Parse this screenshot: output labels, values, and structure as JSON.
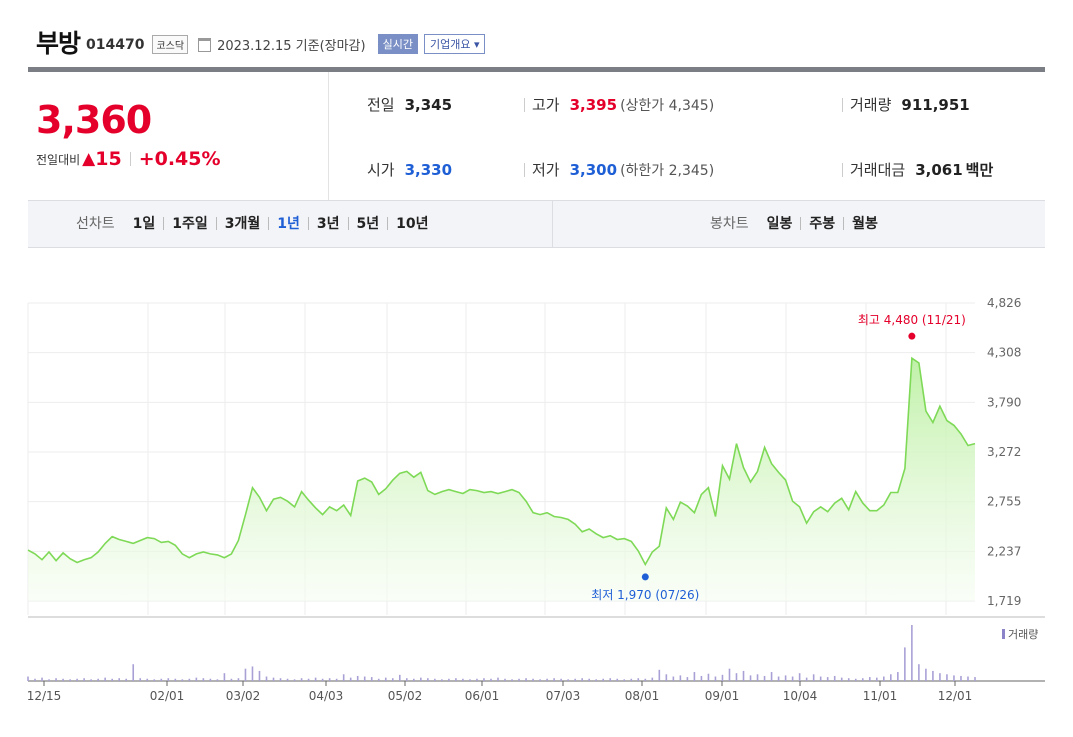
{
  "header": {
    "name": "부방",
    "code": "014470",
    "market": "코스닥",
    "date": "2023.12.15 기준(장마감)",
    "realtime": "실시간",
    "overview": "기업개요 ▾"
  },
  "quote": {
    "price": "3,360",
    "change_label": "전일대비",
    "change_arrow": "▲",
    "change": "15",
    "change_pct": "+0.45%"
  },
  "stats": {
    "prev_label": "전일",
    "prev": "3,345",
    "high_label": "고가",
    "high": "3,395",
    "upper_limit": "(상한가 4,345)",
    "volume_label": "거래량",
    "volume": "911,951",
    "open_label": "시가",
    "open": "3,330",
    "low_label": "저가",
    "low": "3,300",
    "lower_limit": "(하한가 2,345)",
    "amount_label": "거래대금",
    "amount": "3,061",
    "amount_unit": "백만"
  },
  "line_chart_tabs": {
    "label": "선차트",
    "items": [
      "1일",
      "1주일",
      "3개월",
      "1년",
      "3년",
      "5년",
      "10년"
    ],
    "active": "1년"
  },
  "candle_chart_tabs": {
    "label": "봉차트",
    "items": [
      "일봉",
      "주봉",
      "월봉"
    ]
  },
  "colors": {
    "up": "#e4002b",
    "down": "#1f5fd6",
    "line": "#7ed957",
    "fill_top": "#bdf0a4",
    "volume_bar": "#a9a1d6"
  },
  "chart_data": {
    "type": "area",
    "y_ticks": [
      "4,826",
      "4,308",
      "3,790",
      "3,272",
      "2,755",
      "2,237",
      "1,719"
    ],
    "ylim": [
      1719,
      4826
    ],
    "x_ticks": [
      "12/15",
      "02/01",
      "03/02",
      "04/03",
      "05/02",
      "06/01",
      "07/03",
      "08/01",
      "09/01",
      "10/04",
      "11/01",
      "12/01"
    ],
    "high_annotation": "최고 4,480 (11/21)",
    "low_annotation": "최저 1,970 (07/26)",
    "high": 4480,
    "low": 1970,
    "volume_legend": "거래량",
    "grid": true,
    "series": [
      {
        "values": [
          2250,
          2210,
          2150,
          2230,
          2140,
          2220,
          2160,
          2120,
          2150,
          2170,
          2230,
          2320,
          2390,
          2360,
          2340,
          2320,
          2350,
          2380,
          2370,
          2330,
          2340,
          2300,
          2210,
          2170,
          2210,
          2230,
          2210,
          2200,
          2170,
          2210,
          2350,
          2620,
          2900,
          2800,
          2660,
          2780,
          2800,
          2760,
          2700,
          2860,
          2770,
          2690,
          2620,
          2700,
          2660,
          2720,
          2610,
          2970,
          3000,
          2960,
          2830,
          2890,
          2980,
          3050,
          3070,
          3010,
          3060,
          2870,
          2830,
          2860,
          2880,
          2860,
          2840,
          2880,
          2870,
          2850,
          2860,
          2840,
          2860,
          2880,
          2850,
          2760,
          2640,
          2620,
          2640,
          2600,
          2590,
          2570,
          2520,
          2440,
          2470,
          2420,
          2380,
          2400,
          2360,
          2370,
          2340,
          2240,
          2100,
          2230,
          2290,
          2690,
          2570,
          2750,
          2710,
          2640,
          2830,
          2900,
          2600,
          3130,
          2990,
          3360,
          3110,
          2960,
          3070,
          3320,
          3150,
          3060,
          2980,
          2760,
          2700,
          2530,
          2650,
          2700,
          2650,
          2740,
          2790,
          2670,
          2860,
          2740,
          2660,
          2660,
          2720,
          2850,
          2850,
          3100,
          4250,
          4200,
          3700,
          3580,
          3750,
          3600,
          3550,
          3460,
          3340,
          3360
        ]
      }
    ],
    "volume": [
      8,
      4,
      6,
      3,
      5,
      4,
      3,
      4,
      5,
      3,
      4,
      6,
      4,
      5,
      4,
      30,
      5,
      4,
      3,
      4,
      5,
      4,
      3,
      4,
      6,
      5,
      4,
      3,
      14,
      4,
      5,
      22,
      26,
      18,
      8,
      6,
      5,
      4,
      3,
      5,
      4,
      6,
      4,
      5,
      4,
      12,
      6,
      9,
      8,
      7,
      4,
      6,
      5,
      11,
      5,
      4,
      6,
      5,
      4,
      3,
      4,
      5,
      4,
      3,
      4,
      5,
      4,
      6,
      4,
      3,
      4,
      5,
      4,
      3,
      4,
      5,
      4,
      3,
      4,
      5,
      4,
      3,
      4,
      5,
      4,
      3,
      4,
      5,
      4,
      6,
      20,
      12,
      8,
      10,
      7,
      16,
      9,
      13,
      8,
      11,
      22,
      14,
      18,
      10,
      12,
      9,
      16,
      8,
      10,
      8,
      14,
      6,
      12,
      8,
      7,
      9,
      6,
      5,
      4,
      5,
      7,
      6,
      8,
      12,
      16,
      60,
      100,
      30,
      22,
      18,
      14,
      12,
      10,
      9,
      8,
      7
    ]
  }
}
